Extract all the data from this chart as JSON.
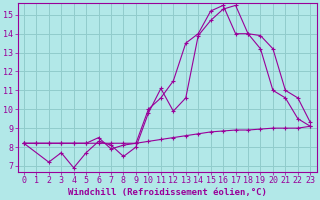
{
  "background_color": "#b2e8e8",
  "grid_color": "#90cccc",
  "line_color": "#990099",
  "xlabel": "Windchill (Refroidissement éolien,°C)",
  "xlabel_fontsize": 6.5,
  "tick_fontsize": 6.0,
  "xlim": [
    -0.5,
    23.5
  ],
  "ylim": [
    6.7,
    15.6
  ],
  "yticks": [
    7,
    8,
    9,
    10,
    11,
    12,
    13,
    14,
    15
  ],
  "xticks": [
    0,
    1,
    2,
    3,
    4,
    5,
    6,
    7,
    8,
    9,
    10,
    11,
    12,
    13,
    14,
    15,
    16,
    17,
    18,
    19,
    20,
    21,
    22,
    23
  ],
  "series1_x": [
    0,
    1,
    2,
    3,
    4,
    5,
    6,
    7,
    8,
    9,
    10,
    11,
    12,
    13,
    14,
    15,
    16,
    17,
    18,
    19,
    20,
    21,
    22,
    23
  ],
  "series1_y": [
    8.2,
    8.2,
    8.2,
    8.2,
    8.2,
    8.2,
    8.2,
    8.2,
    8.2,
    8.2,
    8.3,
    8.4,
    8.5,
    8.6,
    8.7,
    8.8,
    8.85,
    8.9,
    8.9,
    8.95,
    9.0,
    9.0,
    9.0,
    9.1
  ],
  "series2_x": [
    0,
    1,
    2,
    3,
    4,
    5,
    6,
    7,
    8,
    9,
    10,
    11,
    12,
    13,
    14,
    15,
    16,
    17,
    18,
    19,
    20,
    21,
    22,
    23
  ],
  "series2_y": [
    8.2,
    8.2,
    8.2,
    8.2,
    8.2,
    8.2,
    8.5,
    7.9,
    8.1,
    8.2,
    10.0,
    10.6,
    11.5,
    13.5,
    14.0,
    15.2,
    15.5,
    14.0,
    14.0,
    13.2,
    11.0,
    10.6,
    9.5,
    9.1
  ],
  "series3_x": [
    0,
    2,
    3,
    4,
    5,
    6,
    7,
    8,
    9,
    10,
    11,
    12,
    13,
    14,
    15,
    16,
    17,
    18,
    19,
    20,
    21,
    22,
    23
  ],
  "series3_y": [
    8.2,
    7.2,
    7.7,
    6.9,
    7.7,
    8.3,
    8.1,
    7.5,
    8.0,
    9.8,
    11.1,
    9.9,
    10.6,
    13.9,
    14.7,
    15.3,
    15.5,
    14.0,
    13.9,
    13.2,
    11.0,
    10.6,
    9.3
  ]
}
